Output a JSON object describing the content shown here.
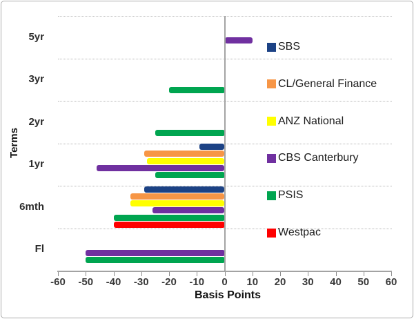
{
  "chart_data": {
    "type": "bar",
    "orientation": "horizontal",
    "title": "",
    "xlabel": "Basis Points",
    "ylabel": "Terms",
    "units": "basis points",
    "xlim": [
      -60,
      60
    ],
    "x_ticks": [
      -60,
      -50,
      -40,
      -30,
      -20,
      -10,
      0,
      10,
      20,
      30,
      40,
      50,
      60
    ],
    "grid": "dotted horizontal category separators",
    "legend_position": "right overlay inside plot",
    "categories": [
      "5yr",
      "3yr",
      "2yr",
      "1yr",
      "6mth",
      "Fl"
    ],
    "series": [
      {
        "name": "SBS",
        "color": "#1C4285",
        "values": [
          null,
          null,
          null,
          -9,
          -29,
          null
        ]
      },
      {
        "name": "CL/General Finance",
        "color": "#F79646",
        "values": [
          null,
          null,
          null,
          -29,
          -34,
          null
        ]
      },
      {
        "name": "ANZ National",
        "color": "#FFFF00",
        "values": [
          null,
          null,
          null,
          -28,
          -34,
          null
        ]
      },
      {
        "name": "CBS Canterbury",
        "color": "#7030A0",
        "values": [
          10,
          null,
          null,
          -46,
          -26,
          -50
        ]
      },
      {
        "name": "PSIS",
        "color": "#00A550",
        "values": [
          null,
          -20,
          -25,
          -25,
          -40,
          -50
        ]
      },
      {
        "name": "Westpac",
        "color": "#FE0000",
        "values": [
          null,
          null,
          null,
          null,
          -40,
          null
        ]
      }
    ]
  }
}
